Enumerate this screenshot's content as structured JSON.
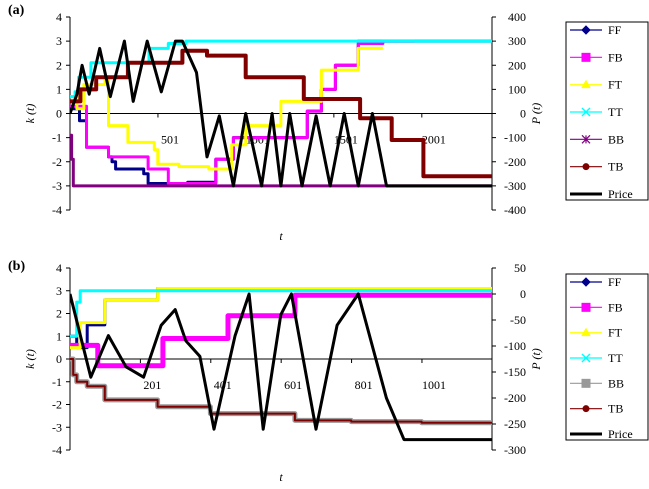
{
  "chart_data": [
    {
      "panel_label": "(a)",
      "type": "line",
      "xlabel": "t",
      "ylabel_left": "k (t)",
      "ylabel_right": "P (t)",
      "xlim": [
        1,
        2400
      ],
      "ylim_left": [
        -4,
        4
      ],
      "ylim_right": [
        -400,
        400
      ],
      "x_ticks": [
        {
          "value": 501,
          "label": "501"
        },
        {
          "value": 1001,
          "label": "1001"
        },
        {
          "value": 1501,
          "label": "1501"
        },
        {
          "value": 2001,
          "label": "2001"
        }
      ],
      "y_ticks_left": [
        "-4",
        "-3",
        "-2",
        "-1",
        "0",
        "1",
        "2",
        "3",
        "4"
      ],
      "y_ticks_right": [
        "-400",
        "-300",
        "-200",
        "-100",
        "0",
        "100",
        "200",
        "300",
        "400"
      ],
      "legend_position": "right",
      "series": [
        {
          "name": "FF",
          "color": "#00008b",
          "marker": "diamond",
          "width": 3,
          "x": [
            1,
            55,
            55,
            95,
            95,
            220,
            220,
            240,
            240,
            260,
            260,
            420,
            420,
            445,
            445,
            560,
            560,
            670,
            670,
            830,
            830,
            930,
            930,
            1050,
            1050,
            1350,
            1350,
            1430,
            1430,
            1510,
            1510,
            1640,
            1640,
            1780,
            1780,
            1960,
            1960,
            2400
          ],
          "y": [
            0.2,
            0.2,
            -0.3,
            -0.3,
            -1.4,
            -1.4,
            -1.8,
            -1.8,
            -2.0,
            -2.0,
            -2.3,
            -2.3,
            -2.5,
            -2.5,
            -2.9,
            -2.9,
            -2.9,
            -2.9,
            -2.85,
            -2.85,
            -1.9,
            -1.9,
            -1.0,
            -1.0,
            -1.0,
            -1.0,
            0.1,
            0.1,
            1.0,
            1.0,
            2.0,
            2.0,
            3.0,
            3.0,
            3.0,
            3.0,
            3.0,
            3.0
          ]
        },
        {
          "name": "FB",
          "color": "#ff00ff",
          "marker": "square",
          "width": 3,
          "x": [
            1,
            95,
            95,
            220,
            220,
            445,
            445,
            560,
            560,
            830,
            830,
            930,
            930,
            1050,
            1050,
            1350,
            1350,
            1430,
            1430,
            1510,
            1510,
            1640,
            1640,
            1780,
            1780,
            1960
          ],
          "y": [
            0.3,
            0.3,
            -1.4,
            -1.4,
            -1.8,
            -1.8,
            -2.3,
            -2.3,
            -2.9,
            -2.9,
            -1.9,
            -1.9,
            -1.0,
            -1.0,
            -1.0,
            -1.0,
            0.1,
            0.1,
            1.0,
            1.0,
            2.0,
            2.0,
            2.9,
            2.9,
            3.0,
            3.0
          ]
        },
        {
          "name": "FT",
          "color": "#ffff00",
          "marker": "triangle",
          "width": 3,
          "x": [
            1,
            40,
            40,
            80,
            80,
            200,
            200,
            220,
            220,
            330,
            330,
            480,
            480,
            500,
            500,
            620,
            620,
            790,
            790,
            920,
            920,
            1000,
            1000,
            1200,
            1200,
            1430,
            1430,
            1640,
            1640,
            1780
          ],
          "y": [
            0.7,
            0.7,
            0.2,
            0.2,
            1.2,
            1.2,
            1.5,
            1.5,
            -0.5,
            -0.5,
            -1.2,
            -1.2,
            -1.5,
            -1.5,
            -2.1,
            -2.1,
            -2.2,
            -2.2,
            -2.3,
            -2.3,
            -1.3,
            -1.3,
            -0.5,
            -0.5,
            0.5,
            0.5,
            1.8,
            1.8,
            2.7,
            2.7
          ]
        },
        {
          "name": "TT",
          "color": "#00ffff",
          "marker": "x",
          "width": 3,
          "x": [
            1,
            30,
            30,
            50,
            50,
            120,
            120,
            450,
            450,
            560,
            560,
            660,
            660,
            2400
          ],
          "y": [
            0.7,
            0.7,
            0.9,
            0.9,
            1.5,
            1.5,
            2.1,
            2.1,
            2.7,
            2.7,
            2.9,
            2.9,
            3.0,
            3.0
          ]
        },
        {
          "name": "BB",
          "color": "#800080",
          "marker": "asterisk",
          "width": 3,
          "x": [
            1,
            10,
            10,
            20,
            20,
            2400
          ],
          "y": [
            -0.9,
            -0.9,
            -1.9,
            -1.9,
            -3.0,
            -3.0
          ]
        },
        {
          "name": "TB",
          "color": "#800000",
          "marker": "circle",
          "width": 4,
          "x": [
            1,
            60,
            60,
            150,
            150,
            330,
            330,
            640,
            640,
            780,
            780,
            1000,
            1000,
            1330,
            1330,
            1650,
            1650,
            1830,
            1830,
            2010,
            2010,
            2400
          ],
          "y": [
            0.5,
            0.5,
            1.0,
            1.0,
            1.5,
            1.5,
            2.1,
            2.1,
            2.6,
            2.6,
            2.4,
            2.4,
            1.5,
            1.5,
            0.6,
            0.6,
            -0.2,
            -0.2,
            -1.1,
            -1.1,
            -2.6,
            -2.6
          ]
        },
        {
          "name": "Price",
          "color": "#000000",
          "marker": "none",
          "width": 3,
          "axis": "right",
          "x": [
            1,
            40,
            70,
            110,
            170,
            230,
            310,
            360,
            440,
            520,
            600,
            640,
            720,
            780,
            850,
            930,
            1000,
            1090,
            1150,
            1200,
            1250,
            1320,
            1400,
            1480,
            1560,
            1640,
            1720,
            1800,
            1880,
            1940,
            2400
          ],
          "y": [
            0,
            80,
            200,
            80,
            270,
            70,
            300,
            50,
            300,
            90,
            300,
            300,
            170,
            -180,
            -10,
            -300,
            0,
            -300,
            0,
            -300,
            0,
            -300,
            -10,
            -300,
            0,
            -300,
            0,
            -300,
            -300,
            -300,
            -300
          ]
        }
      ]
    },
    {
      "panel_label": "(b)",
      "type": "line",
      "xlabel": "t",
      "ylabel_left": "k (t)",
      "ylabel_right": "P (t)",
      "xlim": [
        1,
        1200
      ],
      "ylim_left": [
        -4,
        4
      ],
      "ylim_right": [
        -300,
        50
      ],
      "x_ticks": [
        {
          "value": 201,
          "label": "201"
        },
        {
          "value": 401,
          "label": "401"
        },
        {
          "value": 601,
          "label": "601"
        },
        {
          "value": 801,
          "label": "801"
        },
        {
          "value": 1001,
          "label": "1001"
        }
      ],
      "y_ticks_left": [
        "-4",
        "-3",
        "-2",
        "-1",
        "0",
        "1",
        "2",
        "3",
        "4"
      ],
      "y_ticks_right": [
        "-300",
        "-250",
        "-200",
        "-150",
        "-100",
        "-50",
        "0",
        "50"
      ],
      "legend_position": "right",
      "series": [
        {
          "name": "FF",
          "color": "#00008b",
          "marker": "diamond",
          "width": 3,
          "x": [
            1,
            20,
            20,
            50,
            50,
            100,
            100,
            250,
            250,
            1200
          ],
          "y": [
            1.0,
            1.0,
            0.5,
            0.5,
            1.5,
            1.5,
            2.6,
            2.6,
            3.1,
            3.1
          ]
        },
        {
          "name": "FB",
          "color": "#ff00ff",
          "marker": "square",
          "width": 5,
          "x": [
            1,
            80,
            80,
            240,
            240,
            265,
            265,
            450,
            450,
            640,
            640,
            1200
          ],
          "y": [
            0.6,
            0.6,
            -0.3,
            -0.3,
            -0.3,
            -0.3,
            0.9,
            0.9,
            1.9,
            1.9,
            2.8,
            2.8
          ]
        },
        {
          "name": "FT",
          "color": "#ffff00",
          "marker": "triangle",
          "width": 3,
          "x": [
            1,
            30,
            30,
            100,
            100,
            250,
            250,
            1200
          ],
          "y": [
            0.5,
            0.5,
            1.6,
            1.6,
            2.6,
            2.6,
            3.1,
            3.1
          ]
        },
        {
          "name": "TT",
          "color": "#00ffff",
          "marker": "x",
          "width": 3,
          "x": [
            1,
            20,
            20,
            30,
            30,
            1200
          ],
          "y": [
            1.0,
            1.0,
            2.5,
            2.5,
            3.0,
            3.0
          ]
        },
        {
          "name": "BB",
          "color": "#999999",
          "marker": "square",
          "width": 5,
          "x": [
            1,
            10,
            10,
            20,
            20,
            50,
            50,
            100,
            100,
            250,
            250,
            400,
            400,
            500,
            500,
            640,
            640,
            800,
            800,
            1000,
            1000,
            1200
          ],
          "y": [
            0,
            0,
            -0.7,
            -0.7,
            -1.0,
            -1.0,
            -1.2,
            -1.2,
            -1.8,
            -1.8,
            -2.1,
            -2.1,
            -2.4,
            -2.4,
            -2.4,
            -2.4,
            -2.7,
            -2.7,
            -2.75,
            -2.75,
            -2.8,
            -2.8
          ]
        },
        {
          "name": "TB",
          "color": "#800000",
          "marker": "circle",
          "width": 2,
          "x": [
            1,
            10,
            10,
            20,
            20,
            50,
            50,
            100,
            100,
            250,
            250,
            400,
            400,
            500,
            500,
            640,
            640,
            800,
            800,
            1000,
            1000,
            1200
          ],
          "y": [
            0,
            0,
            -0.7,
            -0.7,
            -1.0,
            -1.0,
            -1.2,
            -1.2,
            -1.8,
            -1.8,
            -2.1,
            -2.1,
            -2.4,
            -2.4,
            -2.4,
            -2.4,
            -2.7,
            -2.7,
            -2.75,
            -2.75,
            -2.8,
            -2.8
          ]
        },
        {
          "name": "Price",
          "color": "#000000",
          "marker": "none",
          "width": 3,
          "axis": "right",
          "x": [
            1,
            60,
            110,
            160,
            210,
            260,
            300,
            330,
            370,
            410,
            470,
            510,
            550,
            600,
            630,
            700,
            760,
            820,
            900,
            950,
            960,
            1200
          ],
          "y": [
            0,
            -160,
            -80,
            -140,
            -160,
            -60,
            -30,
            -90,
            -120,
            -260,
            -80,
            0,
            -260,
            -40,
            0,
            -260,
            -60,
            0,
            -200,
            -280,
            -280,
            -280
          ]
        }
      ]
    }
  ]
}
